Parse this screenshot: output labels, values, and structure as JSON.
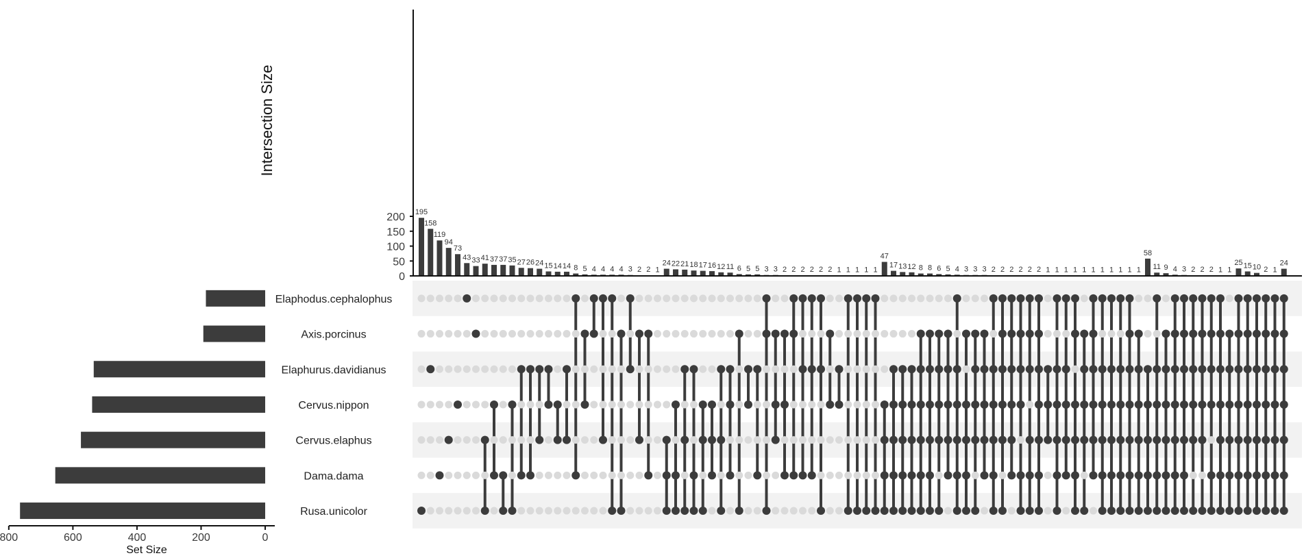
{
  "chart_data": {
    "type": "bar",
    "chart_kind": "upset",
    "ylabel": "Intersection Size",
    "xlabel_sets": "Set Size",
    "ylim": [
      0,
      225
    ],
    "yticks": [
      0,
      50,
      100,
      150,
      200
    ],
    "set_size_ticks": [
      800,
      600,
      400,
      200,
      0
    ],
    "set_size_lim": [
      0,
      800
    ],
    "colors": {
      "bar": "#3c3c3c",
      "dot_on": "#3c3c3c",
      "dot_off": "#dadada",
      "stripe": "#f2f2f2"
    },
    "sets": [
      {
        "name": "Elaphodus.cephalophus",
        "size": 185
      },
      {
        "name": "Axis.porcinus",
        "size": 193
      },
      {
        "name": "Elaphurus.davidianus",
        "size": 535
      },
      {
        "name": "Cervus.nippon",
        "size": 540
      },
      {
        "name": "Cervus.elaphus",
        "size": 575
      },
      {
        "name": "Dama.dama",
        "size": 655
      },
      {
        "name": "Rusa.unicolor",
        "size": 765
      }
    ],
    "intersections": [
      {
        "value": 195,
        "sets": [
          6
        ]
      },
      {
        "value": 158,
        "sets": [
          2
        ]
      },
      {
        "value": 119,
        "sets": [
          5
        ]
      },
      {
        "value": 94,
        "sets": [
          4
        ]
      },
      {
        "value": 73,
        "sets": [
          3
        ]
      },
      {
        "value": 43,
        "sets": [
          0
        ]
      },
      {
        "value": 33,
        "sets": [
          1
        ]
      },
      {
        "value": 41,
        "sets": [
          4,
          6
        ]
      },
      {
        "value": 37,
        "sets": [
          3,
          5
        ]
      },
      {
        "value": 37,
        "sets": [
          5,
          6
        ]
      },
      {
        "value": 35,
        "sets": [
          3,
          6
        ]
      },
      {
        "value": 27,
        "sets": [
          2,
          5
        ]
      },
      {
        "value": 26,
        "sets": [
          2,
          5
        ]
      },
      {
        "value": 24,
        "sets": [
          2,
          4
        ]
      },
      {
        "value": 15,
        "sets": [
          2,
          3
        ]
      },
      {
        "value": 14,
        "sets": [
          3,
          4
        ]
      },
      {
        "value": 14,
        "sets": [
          2,
          4
        ]
      },
      {
        "value": 8,
        "sets": [
          0,
          5
        ]
      },
      {
        "value": 5,
        "sets": [
          1,
          3
        ]
      },
      {
        "value": 4,
        "sets": [
          0,
          1
        ]
      },
      {
        "value": 4,
        "sets": [
          0,
          4
        ]
      },
      {
        "value": 4,
        "sets": [
          0,
          6
        ]
      },
      {
        "value": 4,
        "sets": [
          1,
          6
        ]
      },
      {
        "value": 3,
        "sets": [
          0,
          2
        ]
      },
      {
        "value": 2,
        "sets": [
          1,
          4
        ]
      },
      {
        "value": 2,
        "sets": [
          1,
          5
        ]
      },
      {
        "value": 1,
        "sets": []
      },
      {
        "value": 24,
        "sets": [
          4,
          5,
          6
        ]
      },
      {
        "value": 22,
        "sets": [
          3,
          5,
          6
        ]
      },
      {
        "value": 21,
        "sets": [
          2,
          4,
          6
        ]
      },
      {
        "value": 18,
        "sets": [
          2,
          5,
          6
        ]
      },
      {
        "value": 17,
        "sets": [
          3,
          4,
          6
        ]
      },
      {
        "value": 16,
        "sets": [
          3,
          4,
          5
        ]
      },
      {
        "value": 12,
        "sets": [
          2,
          4,
          6
        ]
      },
      {
        "value": 11,
        "sets": [
          2,
          3,
          5
        ]
      },
      {
        "value": 6,
        "sets": [
          1,
          6
        ]
      },
      {
        "value": 5,
        "sets": [
          2,
          3
        ]
      },
      {
        "value": 5,
        "sets": [
          2,
          5
        ]
      },
      {
        "value": 3,
        "sets": [
          0,
          1,
          6
        ]
      },
      {
        "value": 3,
        "sets": [
          1,
          3,
          4
        ]
      },
      {
        "value": 2,
        "sets": [
          1,
          3,
          5
        ]
      },
      {
        "value": 2,
        "sets": [
          0,
          1,
          5
        ]
      },
      {
        "value": 2,
        "sets": [
          0,
          2,
          5
        ]
      },
      {
        "value": 2,
        "sets": [
          0,
          2,
          5
        ]
      },
      {
        "value": 2,
        "sets": [
          0,
          2,
          6
        ]
      },
      {
        "value": 2,
        "sets": [
          1,
          3
        ]
      },
      {
        "value": 1,
        "sets": [
          2,
          3
        ]
      },
      {
        "value": 1,
        "sets": [
          0,
          6
        ]
      },
      {
        "value": 1,
        "sets": [
          0,
          6
        ]
      },
      {
        "value": 1,
        "sets": [
          0,
          6
        ]
      },
      {
        "value": 1,
        "sets": [
          0,
          6
        ]
      },
      {
        "value": 47,
        "sets": [
          3,
          4,
          5,
          6
        ]
      },
      {
        "value": 17,
        "sets": [
          2,
          3,
          4,
          5,
          6
        ]
      },
      {
        "value": 13,
        "sets": [
          2,
          3,
          4,
          5,
          6
        ]
      },
      {
        "value": 12,
        "sets": [
          2,
          3,
          4,
          5,
          6
        ]
      },
      {
        "value": 8,
        "sets": [
          1,
          2,
          3,
          4,
          5,
          6
        ]
      },
      {
        "value": 8,
        "sets": [
          1,
          2,
          3,
          4,
          5,
          6
        ]
      },
      {
        "value": 6,
        "sets": [
          1,
          2,
          3,
          4,
          6
        ]
      },
      {
        "value": 5,
        "sets": [
          1,
          2,
          3,
          4,
          5
        ]
      },
      {
        "value": 4,
        "sets": [
          0,
          2,
          3,
          4,
          5,
          6
        ]
      },
      {
        "value": 3,
        "sets": [
          1,
          3,
          4,
          5,
          6
        ]
      },
      {
        "value": 3,
        "sets": [
          1,
          2,
          3,
          4,
          6
        ]
      },
      {
        "value": 3,
        "sets": [
          1,
          2,
          3,
          4,
          5
        ]
      },
      {
        "value": 2,
        "sets": [
          0,
          2,
          3,
          4,
          5,
          6
        ]
      },
      {
        "value": 2,
        "sets": [
          0,
          1,
          2,
          3,
          4,
          6
        ]
      },
      {
        "value": 2,
        "sets": [
          0,
          1,
          2,
          3,
          4,
          5
        ]
      },
      {
        "value": 2,
        "sets": [
          0,
          1,
          2,
          3,
          5,
          6
        ]
      },
      {
        "value": 2,
        "sets": [
          0,
          1,
          2,
          4,
          5,
          6
        ]
      },
      {
        "value": 2,
        "sets": [
          0,
          1,
          2,
          3,
          4,
          5,
          6
        ]
      },
      {
        "value": 1,
        "sets": [
          2,
          3,
          4
        ]
      },
      {
        "value": 1,
        "sets": [
          0,
          2,
          3,
          4,
          5,
          6
        ]
      },
      {
        "value": 1,
        "sets": [
          0,
          2,
          3,
          4,
          5
        ]
      },
      {
        "value": 1,
        "sets": [
          0,
          1,
          3,
          4,
          5,
          6
        ]
      },
      {
        "value": 1,
        "sets": [
          1,
          2,
          3,
          4,
          6
        ]
      },
      {
        "value": 1,
        "sets": [
          0,
          1,
          2,
          3,
          4,
          5
        ]
      },
      {
        "value": 1,
        "sets": [
          0,
          2,
          3,
          4,
          5,
          6
        ]
      },
      {
        "value": 1,
        "sets": [
          0,
          2,
          3,
          4,
          5,
          6
        ]
      },
      {
        "value": 1,
        "sets": [
          0,
          2,
          3,
          4,
          5,
          6
        ]
      },
      {
        "value": 1,
        "sets": [
          0,
          1,
          2,
          3,
          4,
          5,
          6
        ]
      },
      {
        "value": 1,
        "sets": [
          1,
          2,
          3,
          4,
          5,
          6
        ]
      },
      {
        "value": 58,
        "sets": [
          2,
          3,
          4,
          5,
          6
        ]
      },
      {
        "value": 11,
        "sets": [
          0,
          2,
          3,
          4,
          5,
          6
        ]
      },
      {
        "value": 9,
        "sets": [
          1,
          2,
          3,
          4,
          5,
          6
        ]
      },
      {
        "value": 4,
        "sets": [
          0,
          1,
          2,
          3,
          4,
          5,
          6
        ]
      },
      {
        "value": 3,
        "sets": [
          0,
          1,
          2,
          3,
          4,
          5,
          6
        ]
      },
      {
        "value": 2,
        "sets": [
          0,
          1,
          2,
          3,
          4,
          6
        ]
      },
      {
        "value": 2,
        "sets": [
          0,
          1,
          2,
          3,
          4,
          6
        ]
      },
      {
        "value": 2,
        "sets": [
          0,
          1,
          2,
          3,
          5,
          6
        ]
      },
      {
        "value": 1,
        "sets": [
          0,
          1,
          2,
          3,
          4,
          5,
          6
        ]
      },
      {
        "value": 1,
        "sets": [
          1,
          2,
          3,
          4,
          5,
          6
        ]
      },
      {
        "value": 25,
        "sets": [
          0,
          1,
          2,
          3,
          4,
          5,
          6
        ]
      },
      {
        "value": 15,
        "sets": [
          0,
          1,
          2,
          3,
          4,
          5,
          6
        ]
      },
      {
        "value": 10,
        "sets": [
          0,
          1,
          2,
          3,
          4,
          5,
          6
        ]
      },
      {
        "value": 2,
        "sets": [
          0,
          1,
          2,
          3,
          4,
          5,
          6
        ]
      },
      {
        "value": 1,
        "sets": [
          0,
          1,
          2,
          3,
          4,
          5,
          6
        ]
      },
      {
        "value": 24,
        "sets": [
          0,
          1,
          2,
          3,
          4,
          5,
          6
        ]
      }
    ]
  }
}
